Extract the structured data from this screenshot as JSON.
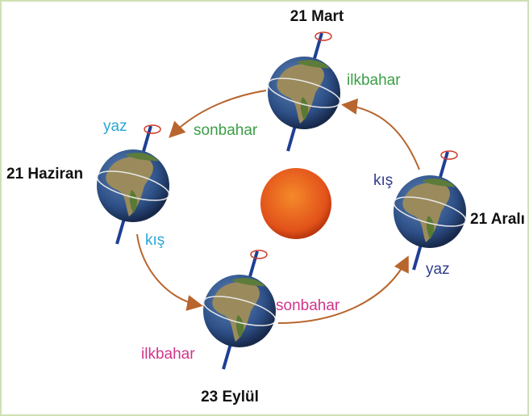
{
  "positions": [
    {
      "date": "21 Mart",
      "seasons": [
        "ilkbahar",
        "sonbahar"
      ]
    },
    {
      "date": "21 Haziran",
      "seasons": [
        "yaz",
        "kış"
      ]
    },
    {
      "date": "23 Eylül",
      "seasons": [
        "sonbahar",
        "ilkbahar"
      ]
    },
    {
      "date": "21 Aralı",
      "seasons": [
        "kış",
        "yaz"
      ]
    }
  ]
}
